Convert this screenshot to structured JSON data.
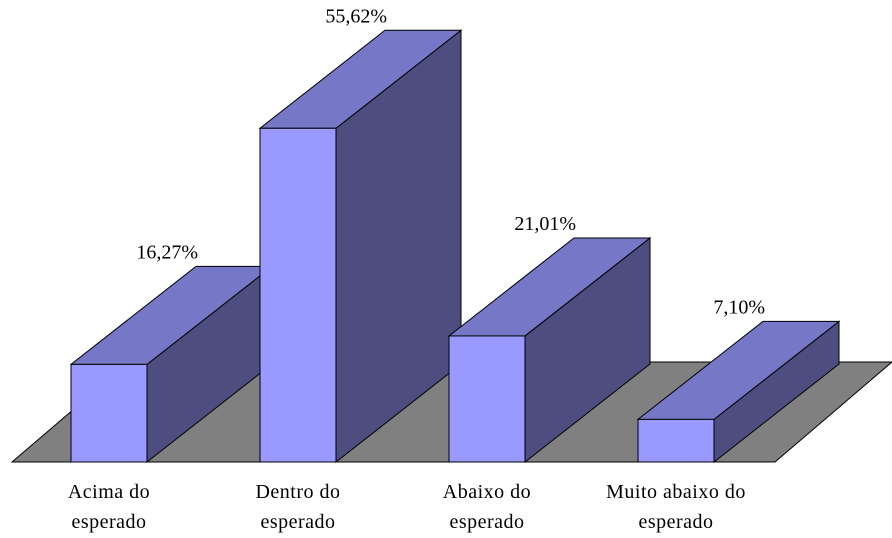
{
  "chart_data": {
    "type": "bar3d",
    "categories": [
      "Acima do\nesperado",
      "Dentro do\nesperado",
      "Abaixo do\nesperado",
      "Muito abaixo do\nesperado"
    ],
    "values": [
      16.27,
      55.62,
      21.01,
      7.1
    ],
    "value_labels": [
      "16,27%",
      "55,62%",
      "21,01%",
      "7,10%"
    ],
    "color": "#9999ff"
  }
}
